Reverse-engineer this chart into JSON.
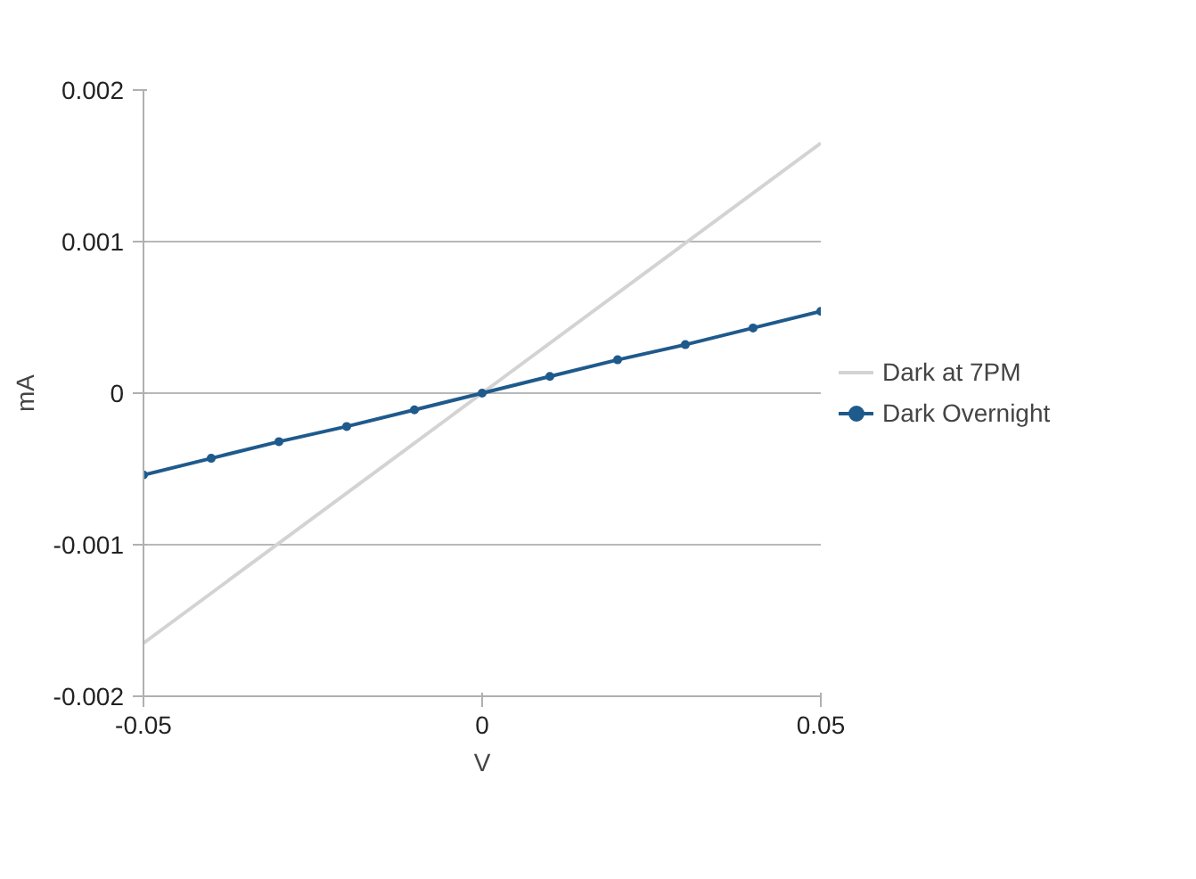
{
  "chart_data": {
    "type": "line",
    "xlabel": "V",
    "ylabel": "mA",
    "xlim": [
      -0.05,
      0.05
    ],
    "ylim": [
      -0.002,
      0.002
    ],
    "xticks": [
      -0.05,
      0,
      0.05
    ],
    "yticks": [
      -0.002,
      -0.001,
      0,
      0.001,
      0.002
    ],
    "grid": "y",
    "legend": "right",
    "series": [
      {
        "name": "Dark at 7PM",
        "color": "#d3d3d3",
        "marker": "none",
        "x": [
          -0.05,
          0,
          0.05
        ],
        "values": [
          -0.00165,
          0,
          0.00165
        ]
      },
      {
        "name": "Dark Overnight",
        "color": "#1f5a8c",
        "marker": "circle",
        "x": [
          -0.05,
          -0.04,
          -0.03,
          -0.02,
          -0.01,
          0,
          0.01,
          0.02,
          0.03,
          0.04,
          0.05
        ],
        "values": [
          -0.00054,
          -0.00043,
          -0.00032,
          -0.00022,
          -0.00011,
          0,
          0.00011,
          0.00022,
          0.00032,
          0.00043,
          0.00054
        ]
      }
    ]
  }
}
